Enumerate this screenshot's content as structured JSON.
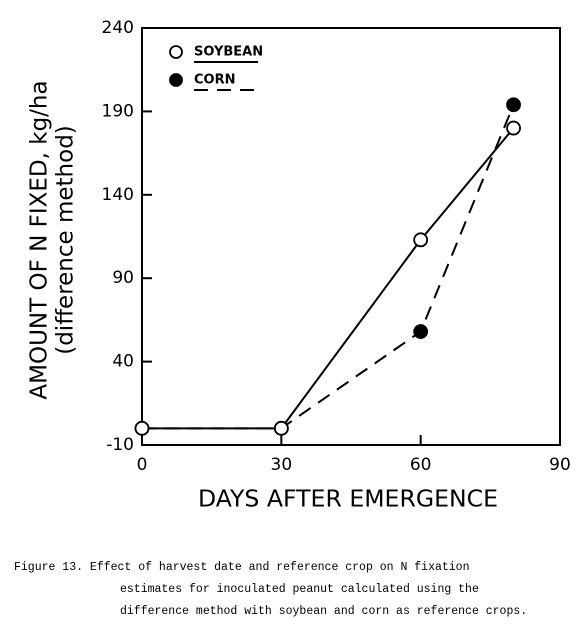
{
  "chart_data": {
    "type": "line",
    "x": [
      0,
      30,
      60,
      80
    ],
    "series": [
      {
        "name": "SOYBEAN",
        "color": "#000000",
        "values": [
          0,
          0,
          113,
          180
        ]
      },
      {
        "name": "CORN",
        "color": "#000000",
        "values": [
          0,
          0,
          58,
          194
        ]
      }
    ],
    "xlim": [
      0,
      90
    ],
    "xticks": [
      0,
      30,
      60,
      90
    ],
    "ylim": [
      -10,
      240
    ],
    "yticks": [
      -10,
      40,
      90,
      140,
      190,
      240
    ],
    "xlabel": "DAYS AFTER EMERGENCE",
    "ylabel": [
      "AMOUNT OF N FIXED, kg/ha",
      "(difference method)"
    ],
    "legend": "upper left",
    "caption": [
      "Figure 13.  Effect of harvest date and reference crop on N fixation",
      "estimates for inoculated peanut calculated using the",
      "difference method with soybean and corn as reference crops."
    ]
  }
}
